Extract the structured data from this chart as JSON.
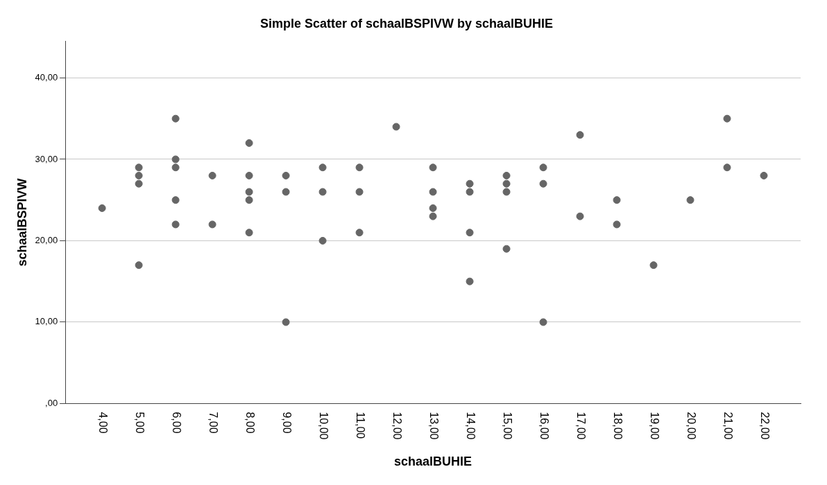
{
  "chart_data": {
    "type": "scatter",
    "title": "Simple Scatter of schaalBSPIVW by schaalBUHIE",
    "xlabel": "schaalBUHIE",
    "ylabel": "schaalBSPIVW",
    "xlim": [
      3,
      23
    ],
    "xticks": [
      {
        "value": 4,
        "label": "4,00"
      },
      {
        "value": 5,
        "label": "5,00"
      },
      {
        "value": 6,
        "label": "6,00"
      },
      {
        "value": 7,
        "label": "7,00"
      },
      {
        "value": 8,
        "label": "8,00"
      },
      {
        "value": 9,
        "label": "9,00"
      },
      {
        "value": 10,
        "label": "10,00"
      },
      {
        "value": 11,
        "label": "11,00"
      },
      {
        "value": 12,
        "label": "12,00"
      },
      {
        "value": 13,
        "label": "13,00"
      },
      {
        "value": 14,
        "label": "14,00"
      },
      {
        "value": 15,
        "label": "15,00"
      },
      {
        "value": 16,
        "label": "16,00"
      },
      {
        "value": 17,
        "label": "17,00"
      },
      {
        "value": 18,
        "label": "18,00"
      },
      {
        "value": 19,
        "label": "19,00"
      },
      {
        "value": 20,
        "label": "20,00"
      },
      {
        "value": 21,
        "label": "21,00"
      },
      {
        "value": 22,
        "label": "22,00"
      }
    ],
    "ylim": [
      0,
      44.5
    ],
    "yticks": [
      {
        "value": 0,
        "label": ",00"
      },
      {
        "value": 10,
        "label": "10,00"
      },
      {
        "value": 20,
        "label": "20,00"
      },
      {
        "value": 30,
        "label": "30,00"
      },
      {
        "value": 40,
        "label": "40,00"
      }
    ],
    "grid": "y",
    "marker": "circle",
    "series": [
      {
        "color": "#666666",
        "x": [
          4,
          5,
          5,
          5,
          5,
          6,
          6,
          6,
          6,
          6,
          7,
          7,
          8,
          8,
          8,
          8,
          8,
          9,
          9,
          9,
          10,
          10,
          10,
          11,
          11,
          11,
          12,
          13,
          13,
          13,
          13,
          14,
          14,
          14,
          14,
          15,
          15,
          15,
          15,
          16,
          16,
          16,
          17,
          17,
          18,
          18,
          19,
          20,
          21,
          21,
          22
        ],
        "values": [
          24,
          29,
          28,
          27,
          17,
          35,
          30,
          29,
          25,
          22,
          28,
          22,
          32,
          28,
          26,
          25,
          21,
          28,
          26,
          10,
          29,
          26,
          20,
          29,
          26,
          21,
          34,
          29,
          26,
          24,
          23,
          27,
          26,
          21,
          15,
          28,
          27,
          26,
          19,
          29,
          27,
          10,
          33,
          23,
          25,
          22,
          17,
          25,
          35,
          29,
          28
        ]
      }
    ]
  }
}
